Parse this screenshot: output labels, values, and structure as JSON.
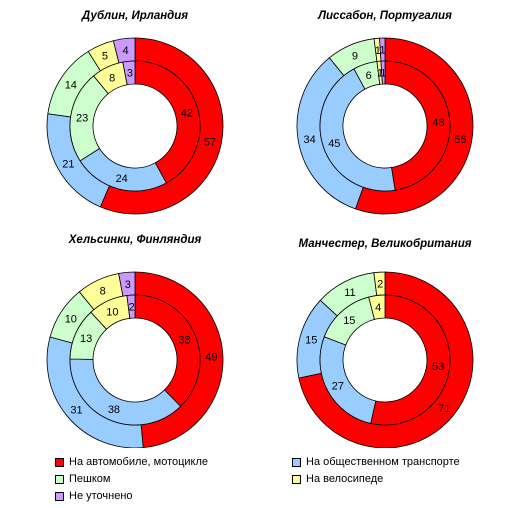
{
  "colors": {
    "car": "#ff0000",
    "public": "#99ccff",
    "walk": "#ccffcc",
    "bike": "#ffff99",
    "unknown": "#cc99ff"
  },
  "legend": [
    {
      "key": "car",
      "label": "На автомобиле, мотоцикле"
    },
    {
      "key": "public",
      "label": "На общественном транспорте"
    },
    {
      "key": "walk",
      "label": "Пешком"
    },
    {
      "key": "bike",
      "label": "На велосипеде"
    },
    {
      "key": "unknown",
      "label": "Не уточнено"
    }
  ],
  "chart_data": [
    {
      "type": "pie",
      "title": "Дублин, Ирландия",
      "categories": [
        "car",
        "public",
        "walk",
        "bike",
        "unknown"
      ],
      "series": [
        {
          "ring": "outer",
          "values": [
            57,
            21,
            14,
            5,
            4
          ]
        },
        {
          "ring": "inner",
          "values": [
            42,
            24,
            23,
            8,
            3
          ]
        }
      ]
    },
    {
      "type": "pie",
      "title": "Лиссабон, Португалия",
      "categories": [
        "car",
        "public",
        "walk",
        "bike",
        "unknown"
      ],
      "series": [
        {
          "ring": "outer",
          "values": [
            56,
            34,
            9,
            1,
            1
          ]
        },
        {
          "ring": "inner",
          "values": [
            48,
            45,
            6,
            1,
            1
          ]
        }
      ]
    },
    {
      "type": "pie",
      "title": "Хельсинки, Финляндия",
      "categories": [
        "car",
        "public",
        "walk",
        "bike",
        "unknown"
      ],
      "series": [
        {
          "ring": "outer",
          "values": [
            49,
            31,
            10,
            8,
            3
          ]
        },
        {
          "ring": "inner",
          "values": [
            38,
            38,
            13,
            10,
            2
          ]
        }
      ]
    },
    {
      "type": "pie",
      "title": "Манчестер, Великобритания",
      "categories": [
        "car",
        "public",
        "walk",
        "bike"
      ],
      "series": [
        {
          "ring": "outer",
          "values": [
            71,
            15,
            11,
            2
          ]
        },
        {
          "ring": "inner",
          "values": [
            53,
            27,
            15,
            4
          ]
        }
      ]
    }
  ]
}
